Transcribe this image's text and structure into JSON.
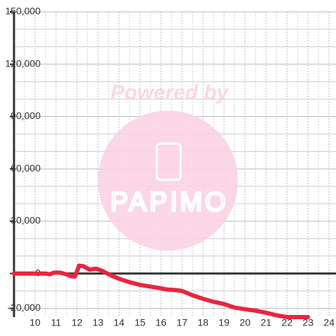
{
  "chart_data": {
    "type": "line",
    "watermark": {
      "line1": "Powered by",
      "line2": "PAPIMO"
    },
    "x": [
      9.0,
      10.5,
      10.7,
      10.9,
      11.2,
      11.5,
      11.7,
      11.9,
      12.1,
      12.3,
      12.6,
      12.9,
      13.2,
      13.6,
      14.0,
      14.5,
      15.0,
      15.5,
      16.0,
      16.3,
      16.7,
      17.0,
      17.5,
      18.0,
      18.5,
      19.0,
      19.5,
      20.0,
      20.5,
      21.0,
      21.5,
      22.0,
      23.0
    ],
    "series": [
      {
        "color": "#e8263f",
        "values": [
          0,
          0,
          -500,
          500,
          500,
          -500,
          -1500,
          -1700,
          4500,
          4200,
          2200,
          2800,
          1500,
          -1000,
          -3000,
          -5000,
          -6500,
          -7500,
          -8500,
          -9200,
          -9500,
          -10000,
          -12500,
          -14500,
          -16200,
          -17500,
          -19500,
          -20500,
          -21300,
          -22500,
          -24000,
          -25000,
          -25000
        ]
      }
    ],
    "xlim": [
      9,
      24.33
    ],
    "xticks": [
      10,
      11,
      12,
      13,
      14,
      15,
      16,
      17,
      18,
      19,
      20,
      21,
      22,
      23,
      24
    ],
    "x_minor_grid": [
      9.5,
      10.5,
      11.5,
      12.5,
      13.5,
      14.5,
      15.5,
      16.5,
      17.5,
      18.5,
      19.5,
      20.5,
      21.5,
      22.5,
      23.5
    ],
    "ylim": [
      -25000,
      150000
    ],
    "yticks": [
      {
        "value": -20000,
        "label": "-20,000"
      },
      0,
      {
        "value": 30000,
        "label": "30,000"
      },
      {
        "value": 60000,
        "label": "60,000"
      },
      {
        "value": 90000,
        "label": "90,000"
      },
      {
        "value": 120000,
        "label": "120,000"
      },
      {
        "value": 150000,
        "label": "150,000"
      }
    ],
    "y_minor_grid": [
      -10000,
      10000,
      20000,
      40000,
      50000,
      70000,
      80000,
      100000,
      110000,
      130000,
      140000
    ],
    "grid": true
  }
}
